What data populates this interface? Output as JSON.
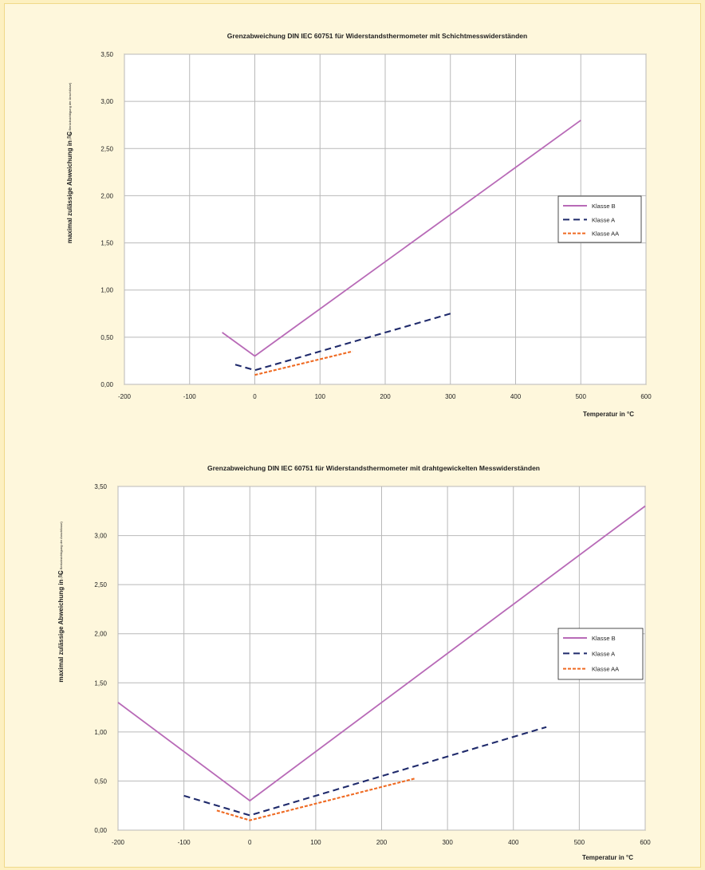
{
  "colors": {
    "background": "#fef7dc",
    "grid": "#b9b9b9",
    "klasse_b": "#b86ab7",
    "klasse_a": "#1f2a6b",
    "klasse_aa": "#ef6a22"
  },
  "chart_data": [
    {
      "type": "line",
      "title": "Grenzabweichung DIN IEC 60751 für Widerstandsthermometer mit Schichtmesswiderständen",
      "xlabel": "Temperatur in °C",
      "ylabel": "maximal zulässige Abweichung in °C",
      "ylabel_note": "(ohne Berücksichtigung der Anschlüsse)",
      "xlim": [
        -200,
        600
      ],
      "ylim": [
        0,
        3.5
      ],
      "grid": true,
      "legend_position": "right",
      "x_ticks": [
        -200,
        -100,
        0,
        100,
        200,
        300,
        400,
        500,
        600
      ],
      "x_tick_labels": [
        "-200",
        "-100",
        "0",
        "100",
        "200",
        "300",
        "400",
        "500",
        "600"
      ],
      "y_ticks": [
        0,
        0.5,
        1.0,
        1.5,
        2.0,
        2.5,
        3.0,
        3.5
      ],
      "y_tick_labels": [
        "0,00",
        "0,50",
        "1,00",
        "1,50",
        "2,00",
        "2,50",
        "3,00",
        "3,50"
      ],
      "series": [
        {
          "name": "Klasse B",
          "style": "solid",
          "color": "#b86ab7",
          "x": [
            -50,
            0,
            500
          ],
          "y": [
            0.55,
            0.3,
            2.8
          ]
        },
        {
          "name": "Klasse A",
          "style": "dashed",
          "color": "#1f2a6b",
          "x": [
            -30,
            0,
            300
          ],
          "y": [
            0.21,
            0.15,
            0.75
          ]
        },
        {
          "name": "Klasse AA",
          "style": "dashed",
          "color": "#ef6a22",
          "x": [
            0,
            150
          ],
          "y": [
            0.1,
            0.35
          ]
        }
      ]
    },
    {
      "type": "line",
      "title": "Grenzabweichung DIN IEC 60751 für Widerstandsthermometer mit drahtgewickelten Messwiderständen",
      "xlabel": "Temperatur in °C",
      "ylabel": "maximal zulässige Abweichung in °C",
      "ylabel_note": "(ohne Berücksichtigung der Anschlüsse)",
      "xlim": [
        -200,
        600
      ],
      "ylim": [
        0,
        3.5
      ],
      "grid": true,
      "legend_position": "right",
      "x_ticks": [
        -200,
        -100,
        0,
        100,
        200,
        300,
        400,
        500,
        600
      ],
      "x_tick_labels": [
        "-200",
        "-100",
        "0",
        "100",
        "200",
        "300",
        "400",
        "500",
        "600"
      ],
      "y_ticks": [
        0,
        0.5,
        1.0,
        1.5,
        2.0,
        2.5,
        3.0,
        3.5
      ],
      "y_tick_labels": [
        "0,00",
        "0,50",
        "1,00",
        "1,50",
        "2,00",
        "2,50",
        "3,00",
        "3,50"
      ],
      "series": [
        {
          "name": "Klasse B",
          "style": "solid",
          "color": "#b86ab7",
          "x": [
            -200,
            0,
            600
          ],
          "y": [
            1.3,
            0.3,
            3.3
          ]
        },
        {
          "name": "Klasse A",
          "style": "dashed",
          "color": "#1f2a6b",
          "x": [
            -100,
            0,
            450
          ],
          "y": [
            0.35,
            0.15,
            1.05
          ]
        },
        {
          "name": "Klasse AA",
          "style": "dashed",
          "color": "#ef6a22",
          "x": [
            -50,
            0,
            250
          ],
          "y": [
            0.2,
            0.1,
            0.525
          ]
        }
      ]
    }
  ]
}
